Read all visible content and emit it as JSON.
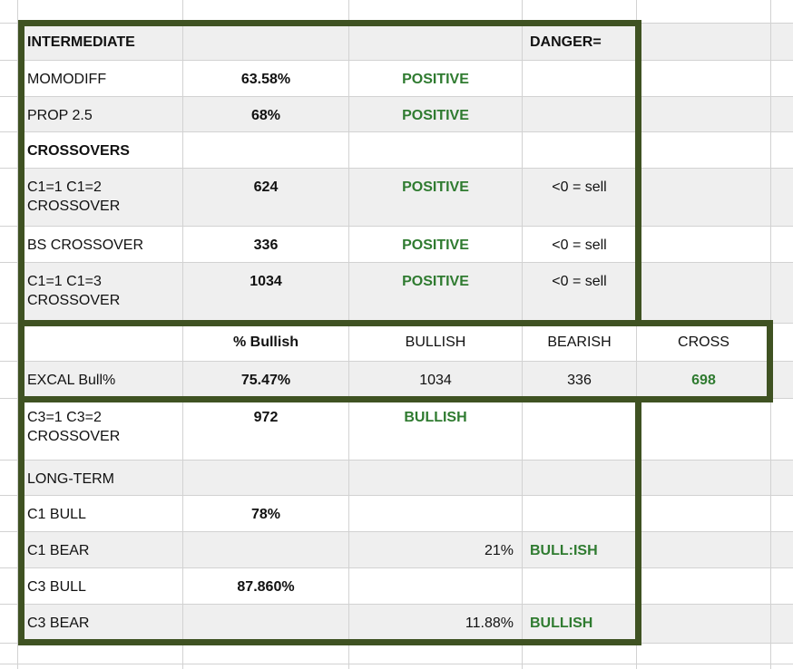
{
  "colors": {
    "highlight_border_green": "#3f5222",
    "status_text_green": "#2f7b30",
    "row_shade_gray": "#efefef",
    "gridline_gray": "#d2d2d2"
  },
  "table": {
    "rows": [
      {
        "name": "row-top-margin",
        "shaded": false,
        "cells": []
      },
      {
        "name": "row-intermediate",
        "shaded": true,
        "cells": [
          {
            "col": 1,
            "name": "intermediate-label",
            "text": "INTERMEDIATE",
            "bold": true,
            "align": "left"
          },
          {
            "col": 4,
            "name": "danger-label",
            "text": "DANGER=",
            "bold": true,
            "align": "left-tight"
          }
        ]
      },
      {
        "name": "row-momodiff",
        "shaded": false,
        "cells": [
          {
            "col": 1,
            "name": "momodiff-label",
            "text": "MOMODIFF",
            "align": "left"
          },
          {
            "col": 2,
            "name": "momodiff-value",
            "text": "63.58%",
            "bold": true,
            "align": "center"
          },
          {
            "col": 3,
            "name": "momodiff-status",
            "text": "POSITIVE",
            "bold": true,
            "green": true,
            "align": "center"
          }
        ]
      },
      {
        "name": "row-prop25",
        "shaded": true,
        "cells": [
          {
            "col": 1,
            "name": "prop25-label",
            "text": "PROP 2.5",
            "align": "left"
          },
          {
            "col": 2,
            "name": "prop25-value",
            "text": "68%",
            "bold": true,
            "align": "center"
          },
          {
            "col": 3,
            "name": "prop25-status",
            "text": "POSITIVE",
            "bold": true,
            "green": true,
            "align": "center"
          }
        ]
      },
      {
        "name": "row-crossovers-header",
        "shaded": false,
        "cells": [
          {
            "col": 1,
            "name": "crossovers-label",
            "text": "CROSSOVERS",
            "bold": true,
            "align": "left"
          }
        ]
      },
      {
        "name": "row-c1-1-c1-2-crossover",
        "shaded": true,
        "cells": [
          {
            "col": 1,
            "name": "c1c2-label",
            "text": "C1=1 C1=2 CROSSOVER",
            "align": "left"
          },
          {
            "col": 2,
            "name": "c1c2-value",
            "text": "624",
            "bold": true,
            "align": "center"
          },
          {
            "col": 3,
            "name": "c1c2-status",
            "text": "POSITIVE",
            "bold": true,
            "green": true,
            "align": "center"
          },
          {
            "col": 4,
            "name": "c1c2-rule",
            "text": "<0 = sell",
            "align": "center"
          }
        ]
      },
      {
        "name": "row-bs-crossover",
        "shaded": false,
        "cells": [
          {
            "col": 1,
            "name": "bs-label",
            "text": "BS CROSSOVER",
            "align": "left"
          },
          {
            "col": 2,
            "name": "bs-value",
            "text": "336",
            "bold": true,
            "align": "center"
          },
          {
            "col": 3,
            "name": "bs-status",
            "text": "POSITIVE",
            "bold": true,
            "green": true,
            "align": "center"
          },
          {
            "col": 4,
            "name": "bs-rule",
            "text": "<0 = sell",
            "align": "center"
          }
        ]
      },
      {
        "name": "row-c1-1-c1-3-crossover",
        "shaded": true,
        "cells": [
          {
            "col": 1,
            "name": "c1c3-label",
            "text": "C1=1 C1=3 CROSSOVER",
            "align": "left"
          },
          {
            "col": 2,
            "name": "c1c3-value",
            "text": "1034",
            "bold": true,
            "align": "center"
          },
          {
            "col": 3,
            "name": "c1c3-status",
            "text": "POSITIVE",
            "bold": true,
            "green": true,
            "align": "center"
          },
          {
            "col": 4,
            "name": "c1c3-rule",
            "text": "<0 = sell",
            "align": "center"
          }
        ]
      },
      {
        "name": "row-bullish-header",
        "shaded": false,
        "cells": [
          {
            "col": 2,
            "name": "pct-bullish-header",
            "text": "% Bullish",
            "bold": true,
            "align": "center"
          },
          {
            "col": 3,
            "name": "bullish-header",
            "text": "BULLISH",
            "align": "center"
          },
          {
            "col": 4,
            "name": "bearish-header",
            "text": "BEARISH",
            "align": "center"
          },
          {
            "col": 5,
            "name": "cross-header",
            "text": "CROSS",
            "align": "center"
          }
        ]
      },
      {
        "name": "row-excal-bull",
        "shaded": true,
        "cells": [
          {
            "col": 1,
            "name": "excal-label",
            "text": "EXCAL Bull%",
            "align": "left"
          },
          {
            "col": 2,
            "name": "excal-pct",
            "text": "75.47%",
            "bold": true,
            "align": "center"
          },
          {
            "col": 3,
            "name": "excal-bullish-count",
            "text": "1034",
            "align": "center"
          },
          {
            "col": 4,
            "name": "excal-bearish-count",
            "text": "336",
            "align": "center"
          },
          {
            "col": 5,
            "name": "excal-cross",
            "text": "698",
            "bold": true,
            "green": true,
            "align": "center"
          }
        ]
      },
      {
        "name": "row-c3-1-c3-2-crossover",
        "shaded": false,
        "cells": [
          {
            "col": 1,
            "name": "c3c2-label",
            "text": "C3=1 C3=2 CROSSOVER",
            "align": "left"
          },
          {
            "col": 2,
            "name": "c3c2-value",
            "text": "972",
            "bold": true,
            "align": "center"
          },
          {
            "col": 3,
            "name": "c3c2-status",
            "text": "BULLISH",
            "bold": true,
            "green": true,
            "align": "center"
          }
        ]
      },
      {
        "name": "row-long-term",
        "shaded": true,
        "cells": [
          {
            "col": 1,
            "name": "long-term-label",
            "text": "LONG-TERM",
            "align": "left"
          }
        ]
      },
      {
        "name": "row-c1-bull",
        "shaded": false,
        "cells": [
          {
            "col": 1,
            "name": "c1-bull-label",
            "text": "C1 BULL",
            "align": "left"
          },
          {
            "col": 2,
            "name": "c1-bull-value",
            "text": "78%",
            "bold": true,
            "align": "center"
          }
        ]
      },
      {
        "name": "row-c1-bear",
        "shaded": true,
        "cells": [
          {
            "col": 1,
            "name": "c1-bear-label",
            "text": "C1 BEAR",
            "align": "left"
          },
          {
            "col": 3,
            "name": "c1-bear-value",
            "text": "21%",
            "align": "right"
          },
          {
            "col": 4,
            "name": "c1-bear-status",
            "text": "BULL:ISH",
            "bold": true,
            "green": true,
            "align": "left-tight"
          }
        ]
      },
      {
        "name": "row-c3-bull",
        "shaded": false,
        "cells": [
          {
            "col": 1,
            "name": "c3-bull-label",
            "text": "C3 BULL",
            "align": "left"
          },
          {
            "col": 2,
            "name": "c3-bull-value",
            "text": "87.860%",
            "bold": true,
            "align": "center"
          }
        ]
      },
      {
        "name": "row-c3-bear",
        "shaded": true,
        "cells": [
          {
            "col": 1,
            "name": "c3-bear-label",
            "text": "C3 BEAR",
            "align": "left"
          },
          {
            "col": 3,
            "name": "c3-bear-value",
            "text": "11.88%",
            "align": "right"
          },
          {
            "col": 4,
            "name": "c3-bear-status",
            "text": "BULLISH",
            "bold": true,
            "green": true,
            "align": "left-tight"
          }
        ]
      },
      {
        "name": "row-bottom-margin",
        "shaded": false,
        "cells": []
      },
      {
        "name": "row-bottom-edge",
        "shaded": false,
        "cells": []
      }
    ]
  }
}
